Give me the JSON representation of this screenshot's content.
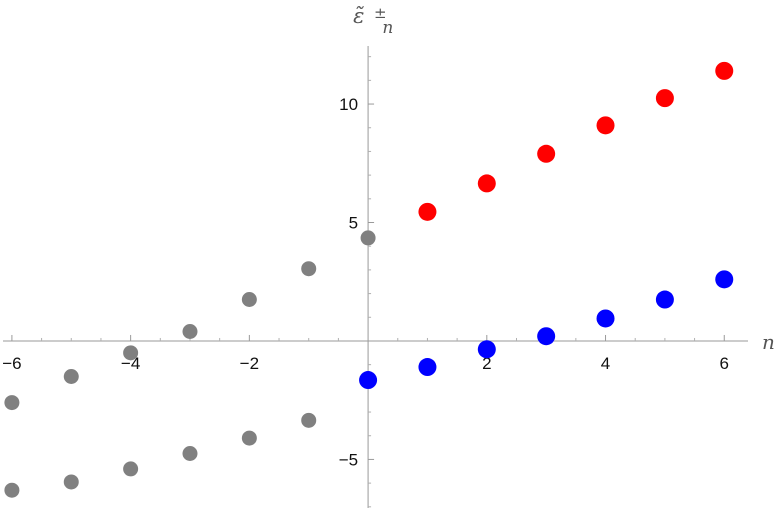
{
  "chart_data": {
    "type": "scatter",
    "title": "",
    "xlabel": "n",
    "ylabel": {
      "base": "ε̃",
      "sup": "±",
      "sub": "n"
    },
    "xlim": [
      -6.15,
      6.4
    ],
    "ylim": [
      -7.05,
      12.45
    ],
    "xticks": [
      -6,
      -4,
      -2,
      2,
      4,
      6
    ],
    "xtick_labels": [
      "−6",
      "−4",
      "−2",
      "2",
      "4",
      "6"
    ],
    "yticks": [
      -5,
      5,
      10
    ],
    "ytick_labels": [
      "−5",
      "5",
      "10"
    ],
    "grid": false,
    "legend": "none",
    "series": [
      {
        "color": "#808080",
        "points": [
          [
            -6,
            -2.6
          ],
          [
            -5,
            -1.5
          ],
          [
            -4,
            -0.5
          ],
          [
            -3,
            0.4
          ],
          [
            -2,
            1.75
          ],
          [
            -1,
            3.05
          ],
          [
            0,
            4.35
          ]
        ]
      },
      {
        "color": "#808080",
        "points": [
          [
            -6,
            -6.3
          ],
          [
            -5,
            -5.95
          ],
          [
            -4,
            -5.4
          ],
          [
            -3,
            -4.75
          ],
          [
            -2,
            -4.1
          ],
          [
            -1,
            -3.35
          ]
        ]
      },
      {
        "color": "#ff0000",
        "points": [
          [
            1,
            5.45
          ],
          [
            2,
            6.65
          ],
          [
            3,
            7.9
          ],
          [
            4,
            9.1
          ],
          [
            5,
            10.25
          ],
          [
            6,
            11.4
          ]
        ]
      },
      {
        "color": "#0000ff",
        "points": [
          [
            0,
            -1.65
          ],
          [
            1,
            -1.1
          ],
          [
            2,
            -0.35
          ],
          [
            3,
            0.2
          ],
          [
            4,
            0.95
          ],
          [
            5,
            1.75
          ],
          [
            6,
            2.6
          ]
        ]
      }
    ]
  }
}
